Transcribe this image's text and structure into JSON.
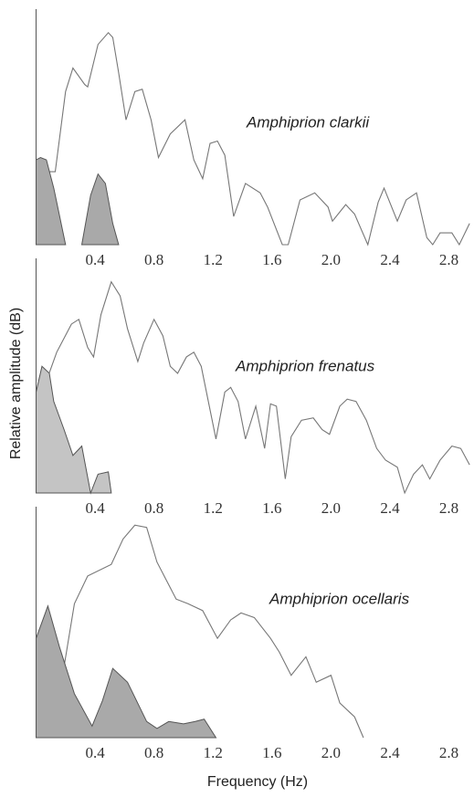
{
  "chart_data": [
    {
      "type": "line",
      "annotation": "Amphiprion clarkii",
      "xlim": [
        0,
        2.97
      ],
      "ylim": [
        0,
        100
      ],
      "xticks": [
        0.4,
        0.8,
        1.2,
        1.6,
        {
          "value": 2,
          "label": "2.0"
        },
        2.4,
        2.8
      ],
      "series": [
        {
          "color": "#777777",
          "x": [
            0.02,
            0.05,
            0.13,
            0.2,
            0.25,
            0.33,
            0.35,
            0.42,
            0.49,
            0.52,
            0.56,
            0.61,
            0.67,
            0.72,
            0.78,
            0.83,
            0.91,
            1.01,
            1.07,
            1.13,
            1.18,
            1.23,
            1.28,
            1.34,
            1.42,
            1.52,
            1.57,
            1.67,
            1.71,
            1.79,
            1.89,
            1.98,
            2.01,
            2.1,
            2.16,
            2.25,
            2.32,
            2.36,
            2.45,
            2.51,
            2.58,
            2.65,
            2.69,
            2.74,
            2.82,
            2.87,
            2.94
          ],
          "values": [
            1,
            31,
            31,
            65,
            75,
            68,
            67,
            85,
            90,
            88,
            73,
            53,
            65,
            66,
            53,
            37,
            47,
            53,
            36,
            28,
            43,
            44,
            38,
            12,
            26,
            22,
            16,
            0,
            0,
            19,
            22,
            16,
            10,
            17,
            13,
            0,
            18,
            24,
            10,
            19,
            22,
            3,
            0,
            5,
            5,
            0,
            9
          ]
        },
        {
          "color": "#555555",
          "fill": "#a9a9a9",
          "x": [
            0.0,
            0.03,
            0.07,
            0.12,
            0.2,
            null,
            0.31,
            0.37,
            0.42,
            0.47,
            0.52,
            0.56
          ],
          "values": [
            36,
            37,
            36,
            24,
            0,
            null,
            0,
            21,
            30,
            26,
            9,
            0
          ]
        }
      ]
    },
    {
      "type": "line",
      "annotation": "Amphiprion frenatus",
      "ylabel": "Relative amplitude (dB)",
      "xlim": [
        0,
        2.97
      ],
      "ylim": [
        0,
        100
      ],
      "xticks": [
        0.4,
        0.8,
        1.2,
        1.6,
        {
          "value": 2,
          "label": "2.0"
        },
        2.4,
        2.8
      ],
      "series": [
        {
          "color": "#777777",
          "x": [
            0.02,
            0.14,
            0.24,
            0.29,
            0.35,
            0.39,
            0.44,
            0.51,
            0.57,
            0.62,
            0.69,
            0.73,
            0.8,
            0.86,
            0.91,
            0.96,
            1.02,
            1.07,
            1.12,
            1.22,
            1.28,
            1.32,
            1.37,
            1.42,
            1.49,
            1.55,
            1.59,
            1.63,
            1.69,
            1.73,
            1.8,
            1.88,
            1.94,
            1.99,
            2.06,
            2.11,
            2.17,
            2.24,
            2.31,
            2.37,
            2.45,
            2.5,
            2.56,
            2.62,
            2.67,
            2.74,
            2.82,
            2.88,
            2.94
          ],
          "values": [
            39,
            60,
            72,
            74,
            62,
            58,
            76,
            90,
            84,
            70,
            56,
            64,
            74,
            67,
            54,
            51,
            58,
            60,
            54,
            23,
            43,
            45,
            39,
            23,
            37,
            19,
            38,
            37,
            6,
            24,
            31,
            32,
            27,
            25,
            37,
            40,
            39,
            31,
            19,
            14,
            11,
            0,
            8,
            12,
            6,
            14,
            20,
            19,
            12
          ]
        },
        {
          "color": "#555555",
          "fill": "#c4c4c4",
          "x": [
            0.0,
            0.04,
            0.09,
            0.12,
            0.19,
            0.25,
            0.31,
            0.37,
            0.42,
            0.49,
            0.51
          ],
          "values": [
            43,
            54,
            51,
            39,
            27,
            16,
            20,
            0,
            8,
            9,
            0
          ]
        }
      ]
    },
    {
      "type": "line",
      "annotation": "Amphiprion ocellaris",
      "xlabel": "Frequency (Hz)",
      "xlim": [
        0,
        2.97
      ],
      "ylim": [
        0,
        100
      ],
      "xticks": [
        0.4,
        0.8,
        1.2,
        1.6,
        {
          "value": 2,
          "label": "2.0"
        },
        2.4,
        2.8
      ],
      "series": [
        {
          "color": "#777777",
          "x": [
            0.0,
            0.08,
            0.18,
            0.26,
            0.35,
            0.51,
            0.59,
            0.67,
            0.75,
            0.82,
            0.95,
            1.03,
            1.13,
            1.23,
            1.32,
            1.39,
            1.48,
            1.59,
            1.65,
            1.73,
            1.83,
            1.9,
            2.0,
            2.06,
            2.16,
            2.22
          ],
          "values": [
            41,
            55,
            27,
            58,
            70,
            75,
            86,
            92,
            91,
            76,
            60,
            58,
            55,
            43,
            51,
            54,
            52,
            43,
            37,
            27,
            35,
            24,
            27,
            15,
            9,
            0
          ]
        },
        {
          "color": "#555555",
          "fill": "#a9a9a9",
          "x": [
            0.0,
            0.08,
            0.16,
            0.26,
            0.38,
            0.45,
            0.52,
            0.62,
            0.75,
            0.82,
            0.9,
            1.0,
            1.08,
            1.14,
            1.22
          ],
          "values": [
            43,
            57,
            39,
            19,
            5,
            16,
            30,
            24,
            7,
            4,
            7,
            6,
            7,
            8,
            0
          ]
        }
      ]
    }
  ]
}
